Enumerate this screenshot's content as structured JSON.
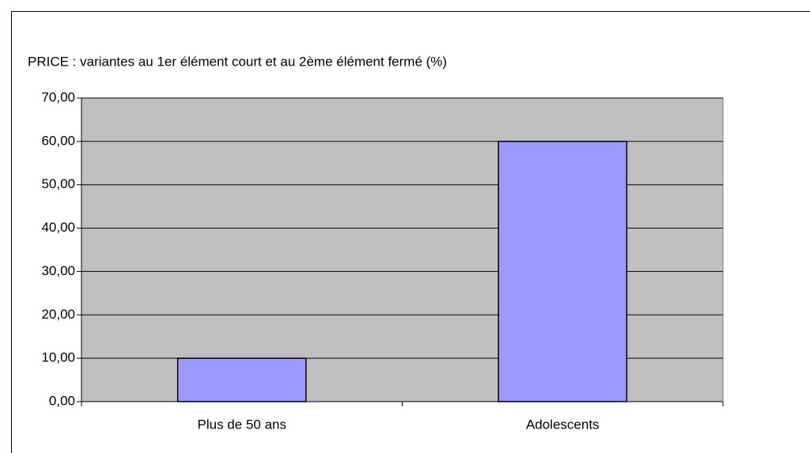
{
  "chart_data": {
    "type": "bar",
    "title": "PRICE : variantes au 1er élément court et au 2ème élément fermé (%)",
    "categories": [
      "Plus de 50 ans",
      "Adolescents"
    ],
    "values": [
      10,
      60
    ],
    "color": "#9999ff",
    "ylim": [
      0,
      70
    ],
    "yticks": [
      {
        "value": 0,
        "label": "0,00"
      },
      {
        "value": 10,
        "label": "10,00"
      },
      {
        "value": 20,
        "label": "20,00"
      },
      {
        "value": 30,
        "label": "30,00"
      },
      {
        "value": 40,
        "label": "40,00"
      },
      {
        "value": 50,
        "label": "50,00"
      },
      {
        "value": 60,
        "label": "60,00"
      },
      {
        "value": 70,
        "label": "70,00"
      }
    ],
    "grid": true
  }
}
